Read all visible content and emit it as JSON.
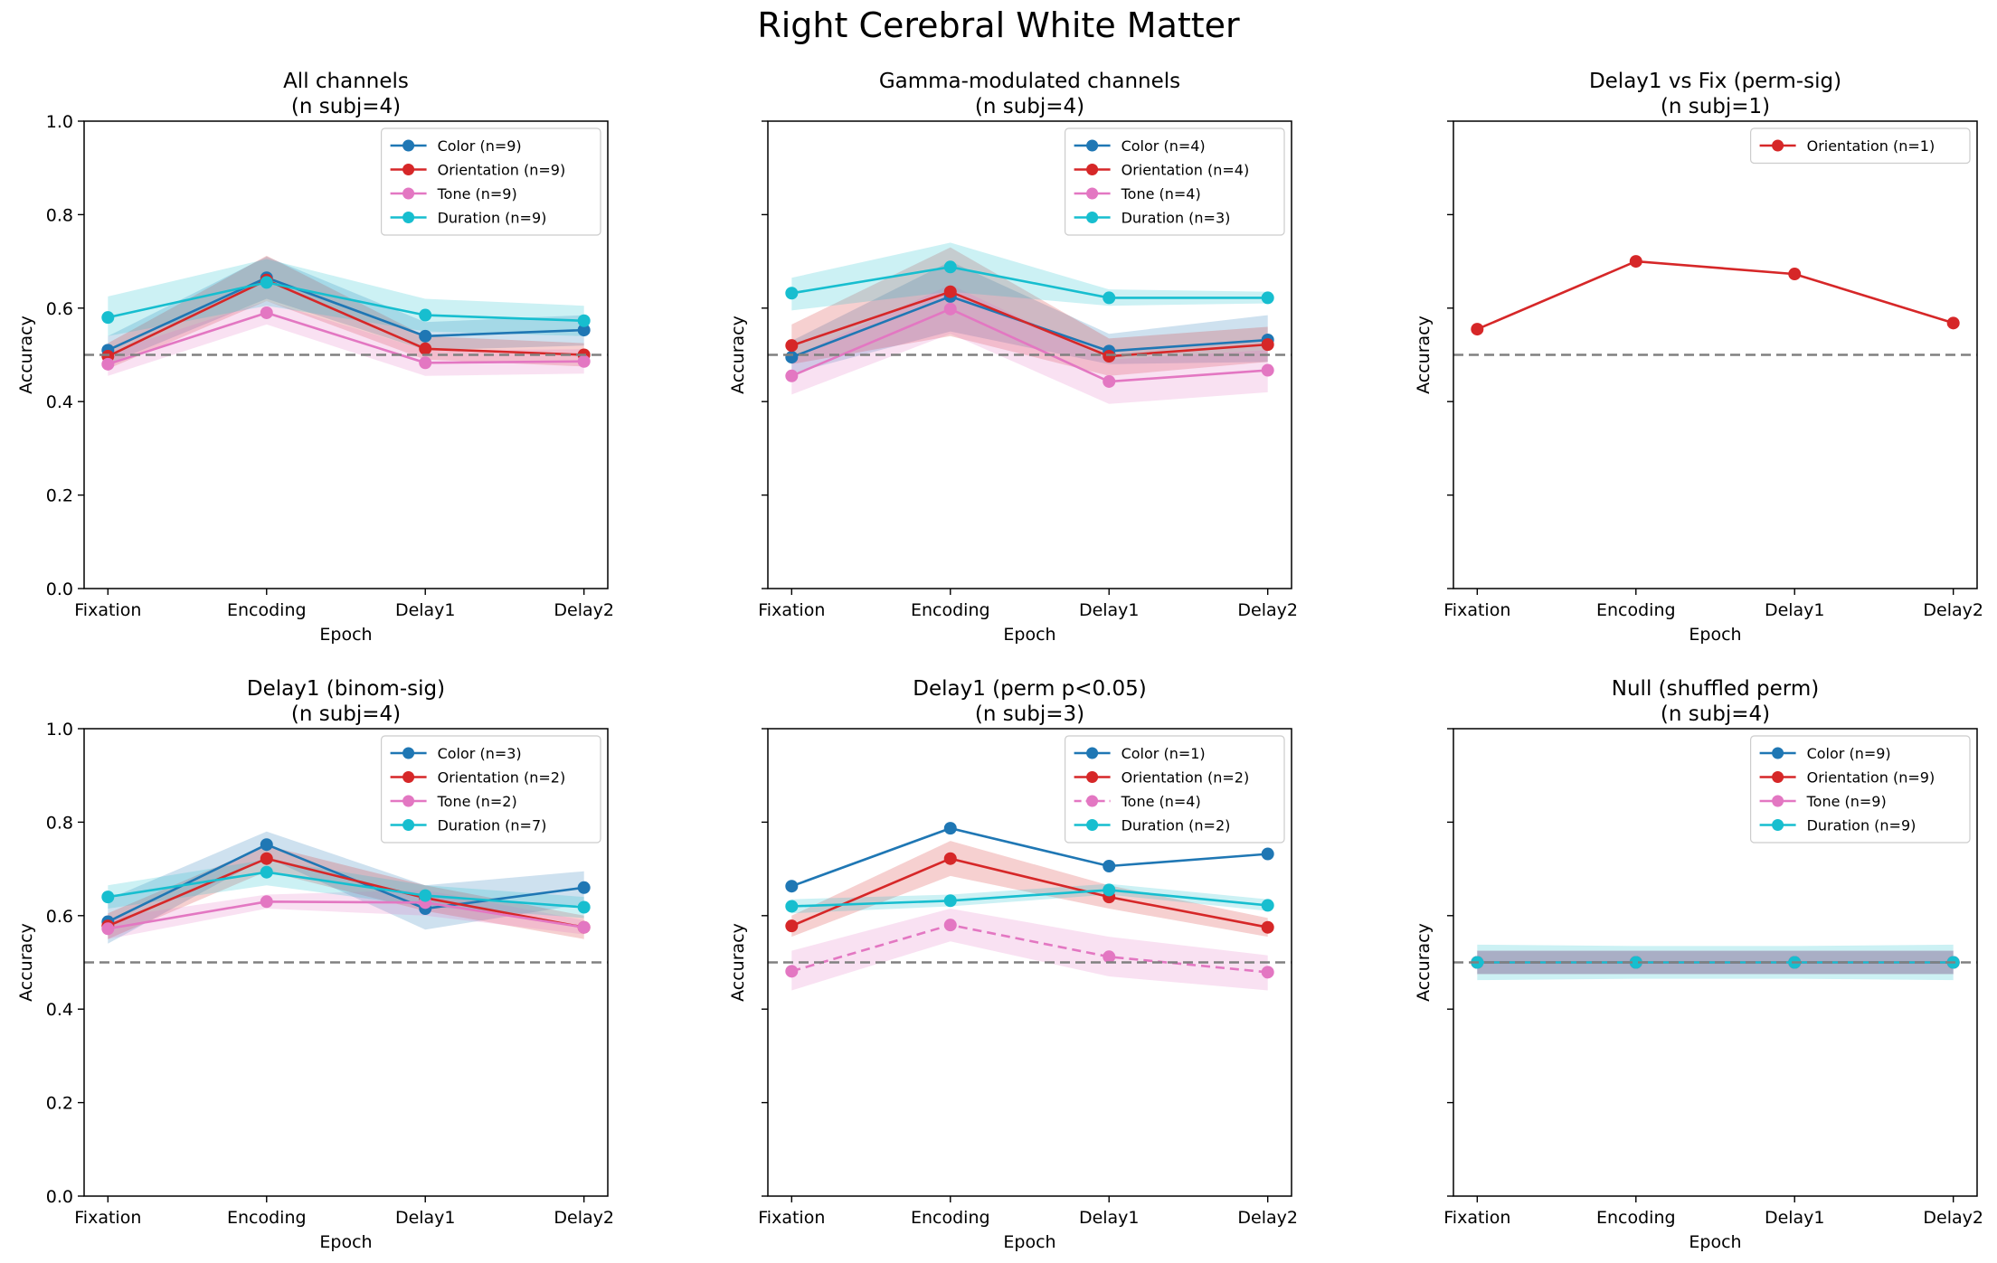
{
  "figure_title": "Right Cerebral White Matter",
  "colors": {
    "Color": "#1f77b4",
    "Orientation": "#d62728",
    "Tone": "#e377c2",
    "Duration": "#17becf",
    "chance_line": "#808080"
  },
  "chart_data": [
    {
      "type": "line",
      "title": "All channels\n(n subj=4)",
      "xlabel": "Epoch",
      "ylabel": "Accuracy",
      "categories": [
        "Fixation",
        "Encoding",
        "Delay1",
        "Delay2"
      ],
      "ylim": [
        0,
        1
      ],
      "yticks": [
        0.0,
        0.2,
        0.4,
        0.6,
        0.8,
        1.0
      ],
      "ytick_labels": [
        "0.0",
        "0.2",
        "0.4",
        "0.6",
        "0.8",
        "1.0"
      ],
      "show_yticklabels": true,
      "chance": 0.5,
      "legend_loc": "upper right",
      "series": [
        {
          "name": "Color (n=9)",
          "key": "Color",
          "values": [
            0.51,
            0.665,
            0.54,
            0.553
          ],
          "lower": [
            0.48,
            0.62,
            0.51,
            0.52
          ],
          "upper": [
            0.54,
            0.71,
            0.57,
            0.585
          ],
          "dashed": false
        },
        {
          "name": "Orientation (n=9)",
          "key": "Orientation",
          "values": [
            0.497,
            0.66,
            0.513,
            0.5
          ],
          "lower": [
            0.47,
            0.615,
            0.49,
            0.475
          ],
          "upper": [
            0.525,
            0.712,
            0.54,
            0.525
          ],
          "dashed": false
        },
        {
          "name": "Tone (n=9)",
          "key": "Tone",
          "values": [
            0.48,
            0.59,
            0.483,
            0.486
          ],
          "lower": [
            0.455,
            0.565,
            0.455,
            0.46
          ],
          "upper": [
            0.505,
            0.615,
            0.51,
            0.512
          ],
          "dashed": false
        },
        {
          "name": "Duration (n=9)",
          "key": "Duration",
          "values": [
            0.58,
            0.655,
            0.585,
            0.573
          ],
          "lower": [
            0.54,
            0.605,
            0.55,
            0.54
          ],
          "upper": [
            0.625,
            0.705,
            0.62,
            0.605
          ],
          "dashed": false
        }
      ]
    },
    {
      "type": "line",
      "title": "Gamma-modulated channels\n(n subj=4)",
      "xlabel": "Epoch",
      "ylabel": "Accuracy",
      "categories": [
        "Fixation",
        "Encoding",
        "Delay1",
        "Delay2"
      ],
      "ylim": [
        0,
        1
      ],
      "yticks": [
        0.0,
        0.2,
        0.4,
        0.6,
        0.8,
        1.0
      ],
      "ytick_labels": [
        "0.0",
        "0.2",
        "0.4",
        "0.6",
        "0.8",
        "1.0"
      ],
      "show_yticklabels": false,
      "chance": 0.5,
      "legend_loc": "upper right",
      "series": [
        {
          "name": "Color (n=4)",
          "key": "Color",
          "values": [
            0.495,
            0.625,
            0.508,
            0.532
          ],
          "lower": [
            0.46,
            0.55,
            0.48,
            0.485
          ],
          "upper": [
            0.53,
            0.7,
            0.545,
            0.585
          ],
          "dashed": false
        },
        {
          "name": "Orientation (n=4)",
          "key": "Orientation",
          "values": [
            0.52,
            0.635,
            0.497,
            0.522
          ],
          "lower": [
            0.48,
            0.54,
            0.455,
            0.485
          ],
          "upper": [
            0.565,
            0.73,
            0.535,
            0.56
          ],
          "dashed": false
        },
        {
          "name": "Tone (n=4)",
          "key": "Tone",
          "values": [
            0.455,
            0.598,
            0.443,
            0.467
          ],
          "lower": [
            0.415,
            0.545,
            0.395,
            0.42
          ],
          "upper": [
            0.495,
            0.65,
            0.49,
            0.51
          ],
          "dashed": false
        },
        {
          "name": "Duration (n=3)",
          "key": "Duration",
          "values": [
            0.632,
            0.688,
            0.622,
            0.622
          ],
          "lower": [
            0.595,
            0.635,
            0.605,
            0.61
          ],
          "upper": [
            0.665,
            0.74,
            0.64,
            0.635
          ],
          "dashed": false
        }
      ]
    },
    {
      "type": "line",
      "title": "Delay1 vs Fix (perm-sig)\n(n subj=1)",
      "xlabel": "Epoch",
      "ylabel": "Accuracy",
      "categories": [
        "Fixation",
        "Encoding",
        "Delay1",
        "Delay2"
      ],
      "ylim": [
        0,
        1
      ],
      "yticks": [
        0.0,
        0.2,
        0.4,
        0.6,
        0.8,
        1.0
      ],
      "ytick_labels": [
        "0.0",
        "0.2",
        "0.4",
        "0.6",
        "0.8",
        "1.0"
      ],
      "show_yticklabels": false,
      "chance": 0.5,
      "legend_loc": "upper right",
      "series": [
        {
          "name": "Orientation (n=1)",
          "key": "Orientation",
          "values": [
            0.555,
            0.7,
            0.673,
            0.568
          ],
          "dashed": false
        }
      ]
    },
    {
      "type": "line",
      "title": "Delay1 (binom-sig)\n(n subj=4)",
      "xlabel": "Epoch",
      "ylabel": "Accuracy",
      "categories": [
        "Fixation",
        "Encoding",
        "Delay1",
        "Delay2"
      ],
      "ylim": [
        0,
        1
      ],
      "yticks": [
        0.0,
        0.2,
        0.4,
        0.6,
        0.8,
        1.0
      ],
      "ytick_labels": [
        "0.0",
        "0.2",
        "0.4",
        "0.6",
        "0.8",
        "1.0"
      ],
      "show_yticklabels": true,
      "chance": 0.5,
      "legend_loc": "upper right",
      "series": [
        {
          "name": "Color (n=3)",
          "key": "Color",
          "values": [
            0.587,
            0.752,
            0.615,
            0.66
          ],
          "lower": [
            0.54,
            0.725,
            0.57,
            0.625
          ],
          "upper": [
            0.635,
            0.78,
            0.665,
            0.695
          ],
          "dashed": false
        },
        {
          "name": "Orientation (n=2)",
          "key": "Orientation",
          "values": [
            0.578,
            0.722,
            0.638,
            0.575
          ],
          "lower": [
            0.55,
            0.695,
            0.61,
            0.55
          ],
          "upper": [
            0.605,
            0.75,
            0.665,
            0.6
          ],
          "dashed": false
        },
        {
          "name": "Tone (n=2)",
          "key": "Tone",
          "values": [
            0.572,
            0.63,
            0.628,
            0.575
          ],
          "lower": [
            0.55,
            0.615,
            0.6,
            0.56
          ],
          "upper": [
            0.595,
            0.645,
            0.655,
            0.59
          ],
          "dashed": false
        },
        {
          "name": "Duration (n=7)",
          "key": "Duration",
          "values": [
            0.64,
            0.693,
            0.643,
            0.618
          ],
          "lower": [
            0.615,
            0.665,
            0.62,
            0.595
          ],
          "upper": [
            0.665,
            0.72,
            0.665,
            0.64
          ],
          "dashed": false
        }
      ]
    },
    {
      "type": "line",
      "title": "Delay1 (perm p<0.05)\n(n subj=3)",
      "xlabel": "Epoch",
      "ylabel": "Accuracy",
      "categories": [
        "Fixation",
        "Encoding",
        "Delay1",
        "Delay2"
      ],
      "ylim": [
        0,
        1
      ],
      "yticks": [
        0.0,
        0.2,
        0.4,
        0.6,
        0.8,
        1.0
      ],
      "ytick_labels": [
        "0.0",
        "0.2",
        "0.4",
        "0.6",
        "0.8",
        "1.0"
      ],
      "show_yticklabels": false,
      "chance": 0.5,
      "legend_loc": "upper right",
      "series": [
        {
          "name": "Color (n=1)",
          "key": "Color",
          "values": [
            0.663,
            0.787,
            0.706,
            0.732
          ],
          "dashed": false
        },
        {
          "name": "Orientation (n=2)",
          "key": "Orientation",
          "values": [
            0.578,
            0.722,
            0.64,
            0.575
          ],
          "lower": [
            0.555,
            0.685,
            0.615,
            0.555
          ],
          "upper": [
            0.6,
            0.76,
            0.665,
            0.595
          ],
          "dashed": false
        },
        {
          "name": "Tone (n=4)",
          "key": "Tone",
          "values": [
            0.481,
            0.58,
            0.512,
            0.479
          ],
          "lower": [
            0.44,
            0.545,
            0.47,
            0.44
          ],
          "upper": [
            0.525,
            0.615,
            0.555,
            0.515
          ],
          "dashed": true
        },
        {
          "name": "Duration (n=2)",
          "key": "Duration",
          "values": [
            0.62,
            0.632,
            0.655,
            0.622
          ],
          "lower": [
            0.605,
            0.62,
            0.645,
            0.61
          ],
          "upper": [
            0.635,
            0.645,
            0.668,
            0.635
          ],
          "dashed": false
        }
      ]
    },
    {
      "type": "line",
      "title": "Null (shuffled perm)\n(n subj=4)",
      "xlabel": "Epoch",
      "ylabel": "Accuracy",
      "categories": [
        "Fixation",
        "Encoding",
        "Delay1",
        "Delay2"
      ],
      "ylim": [
        0,
        1
      ],
      "yticks": [
        0.0,
        0.2,
        0.4,
        0.6,
        0.8,
        1.0
      ],
      "ytick_labels": [
        "0.0",
        "0.2",
        "0.4",
        "0.6",
        "0.8",
        "1.0"
      ],
      "show_yticklabels": false,
      "chance": 0.5,
      "legend_loc": "upper right",
      "series": [
        {
          "name": "Color (n=9)",
          "key": "Color",
          "values": [
            0.5,
            0.5,
            0.5,
            0.5
          ],
          "lower": [
            0.475,
            0.475,
            0.475,
            0.475
          ],
          "upper": [
            0.525,
            0.525,
            0.525,
            0.525
          ],
          "dashed": false
        },
        {
          "name": "Orientation (n=9)",
          "key": "Orientation",
          "values": [
            0.5,
            0.5,
            0.5,
            0.5
          ],
          "lower": [
            0.475,
            0.475,
            0.475,
            0.475
          ],
          "upper": [
            0.525,
            0.525,
            0.525,
            0.525
          ],
          "dashed": false
        },
        {
          "name": "Tone (n=9)",
          "key": "Tone",
          "values": [
            0.5,
            0.5,
            0.5,
            0.5
          ],
          "lower": [
            0.475,
            0.475,
            0.475,
            0.475
          ],
          "upper": [
            0.525,
            0.525,
            0.525,
            0.525
          ],
          "dashed": false
        },
        {
          "name": "Duration (n=9)",
          "key": "Duration",
          "values": [
            0.5,
            0.5,
            0.5,
            0.5
          ],
          "lower": [
            0.462,
            0.465,
            0.465,
            0.462
          ],
          "upper": [
            0.538,
            0.535,
            0.535,
            0.538
          ],
          "dashed": false
        }
      ]
    }
  ]
}
